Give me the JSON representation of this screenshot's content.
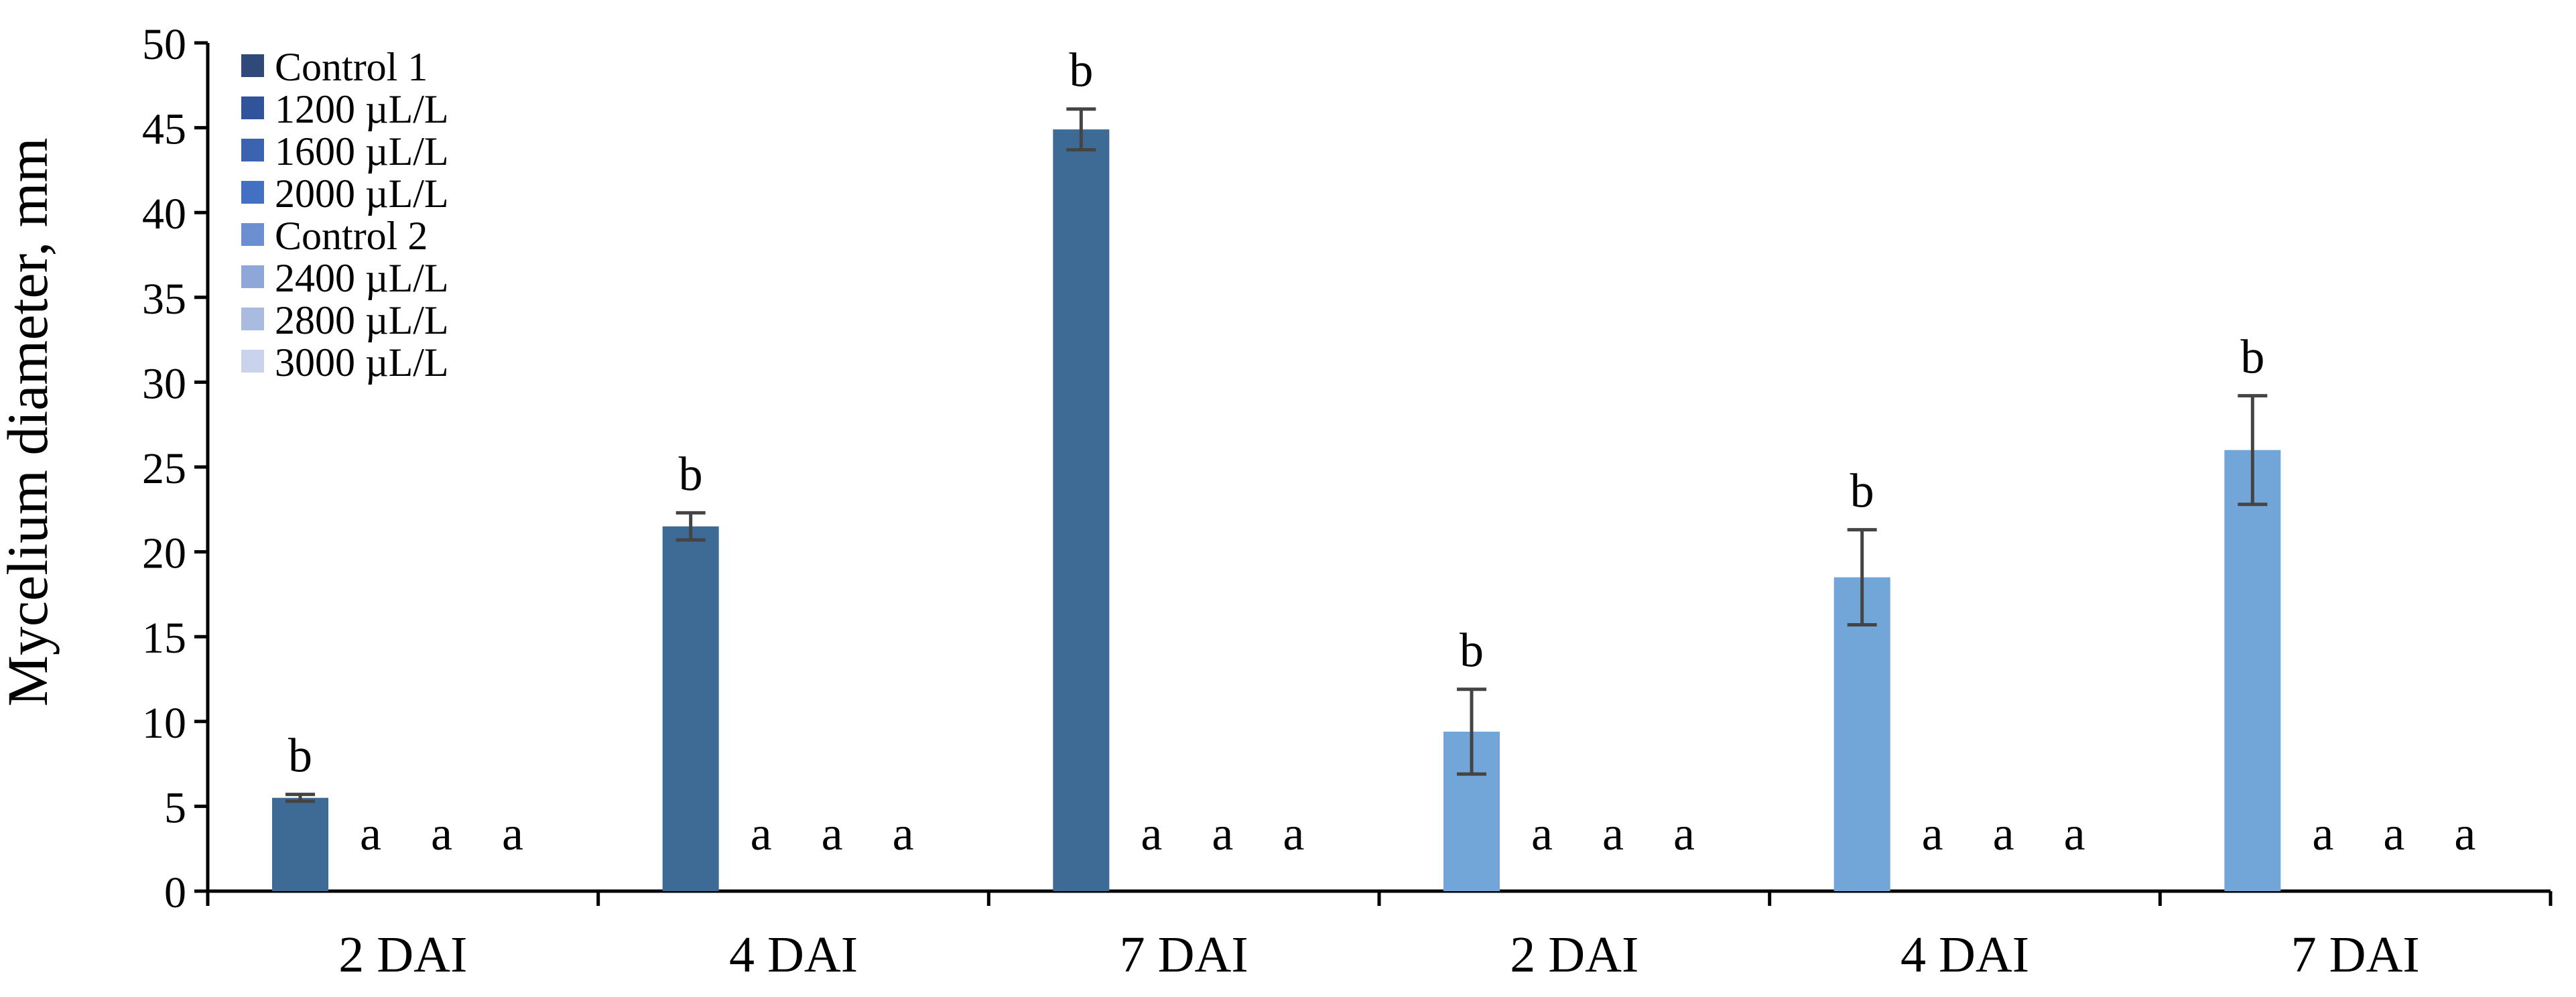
{
  "chart_data": {
    "type": "bar",
    "ylabel": "Mycelium diameter, mm",
    "xlabel": "",
    "ylim": [
      0,
      50
    ],
    "ytick_step": 5,
    "yticks": [
      "0",
      "5",
      "10",
      "15",
      "20",
      "25",
      "30",
      "35",
      "40",
      "45",
      "50"
    ],
    "categories": [
      "2 DAI",
      "4 DAI",
      "7 DAI",
      "2 DAI",
      "4 DAI",
      "7 DAI"
    ],
    "legend": {
      "placement": "top-left",
      "entries": [
        {
          "name": "Control 1",
          "color": "#2f4a78"
        },
        {
          "name": "1200 µL/L",
          "color": "#30549a"
        },
        {
          "name": "1600 µL/L",
          "color": "#3b63b0"
        },
        {
          "name": "2000 µL/L",
          "color": "#4470c4"
        },
        {
          "name": "Control 2",
          "color": "#6b8fd0"
        },
        {
          "name": "2400 µL/L",
          "color": "#8fa6d8"
        },
        {
          "name": "2800 µL/L",
          "color": "#aabbe0"
        },
        {
          "name": "3000 µL/L",
          "color": "#c9d3ec"
        }
      ]
    },
    "groups": [
      {
        "category": "2 DAI",
        "control": "Control 1",
        "value": 5.5,
        "error": 0.2,
        "label": "b",
        "color": "#3e6a96",
        "treatment_labels": [
          "a",
          "a",
          "a"
        ]
      },
      {
        "category": "4 DAI",
        "control": "Control 1",
        "value": 21.5,
        "error": 0.8,
        "label": "b",
        "color": "#3e6a96",
        "treatment_labels": [
          "a",
          "a",
          "a"
        ]
      },
      {
        "category": "7 DAI",
        "control": "Control 1",
        "value": 44.9,
        "error": 1.2,
        "label": "b",
        "color": "#3e6a96",
        "treatment_labels": [
          "a",
          "a",
          "a"
        ]
      },
      {
        "category": "2 DAI",
        "control": "Control 2",
        "value": 9.4,
        "error": 2.5,
        "label": "b",
        "color": "#72a6d8",
        "treatment_labels": [
          "a",
          "a",
          "a"
        ]
      },
      {
        "category": "4 DAI",
        "control": "Control 2",
        "value": 18.5,
        "error": 2.8,
        "label": "b",
        "color": "#72a6d8",
        "treatment_labels": [
          "a",
          "a",
          "a"
        ]
      },
      {
        "category": "7 DAI",
        "control": "Control 2",
        "value": 26.0,
        "error": 3.2,
        "label": "b",
        "color": "#72a6d8",
        "treatment_labels": [
          "a",
          "a",
          "a"
        ]
      }
    ],
    "treatment_values": [
      0,
      0,
      0
    ],
    "grid": false
  }
}
